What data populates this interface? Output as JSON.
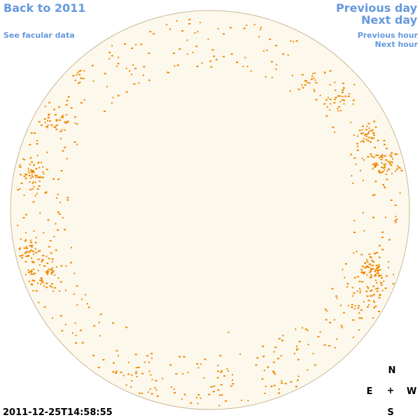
{
  "nav": {
    "back_label": "Back to 2011",
    "facular_label": "See facular data",
    "prev_day_label": "Previous day",
    "next_day_label": "Next day",
    "prev_hour_label": "Previous hour",
    "next_hour_label": "Next hour"
  },
  "timestamp": "2011-12-25T14:58:55",
  "compass": {
    "n": "N",
    "e": "E",
    "w": "W",
    "s": "S",
    "center": "+"
  },
  "colors": {
    "disk_fill": "#fdf8ec",
    "disk_stroke": "#c9b89a",
    "facula": "#ee8800",
    "link": "#6699dd"
  }
}
